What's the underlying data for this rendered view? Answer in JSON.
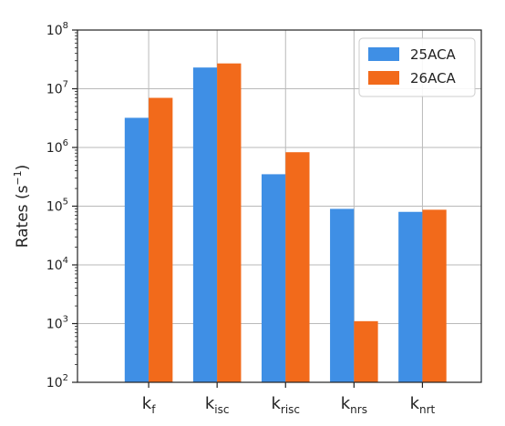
{
  "chart_data": {
    "type": "bar",
    "title": "",
    "xlabel": "",
    "ylabel": "Rates (s⁻¹)",
    "ylabel_parts": {
      "main": "Rates (s",
      "sup": "−1",
      "close": ")"
    },
    "yscale": "log",
    "ylim": [
      100,
      100000000
    ],
    "y_ticks": [
      {
        "value": 100,
        "base": "10",
        "exp": "2"
      },
      {
        "value": 1000,
        "base": "10",
        "exp": "3"
      },
      {
        "value": 10000,
        "base": "10",
        "exp": "4"
      },
      {
        "value": 100000,
        "base": "10",
        "exp": "5"
      },
      {
        "value": 1000000,
        "base": "10",
        "exp": "6"
      },
      {
        "value": 10000000,
        "base": "10",
        "exp": "7"
      },
      {
        "value": 100000000,
        "base": "10",
        "exp": "8"
      }
    ],
    "categories": [
      {
        "main": "k",
        "sub": "f"
      },
      {
        "main": "k",
        "sub": "isc"
      },
      {
        "main": "k",
        "sub": "risc"
      },
      {
        "main": "k",
        "sub": "nrs"
      },
      {
        "main": "k",
        "sub": "nrt"
      }
    ],
    "series": [
      {
        "name": "25ACA",
        "color": "#3f8fe5",
        "values": [
          3200000,
          23000000,
          350000,
          90000,
          80000
        ]
      },
      {
        "name": "26ACA",
        "color": "#f26a1b",
        "values": [
          7000000,
          27000000,
          830000,
          1100,
          87000
        ]
      }
    ],
    "grid": true,
    "legend_position": "top-right"
  }
}
